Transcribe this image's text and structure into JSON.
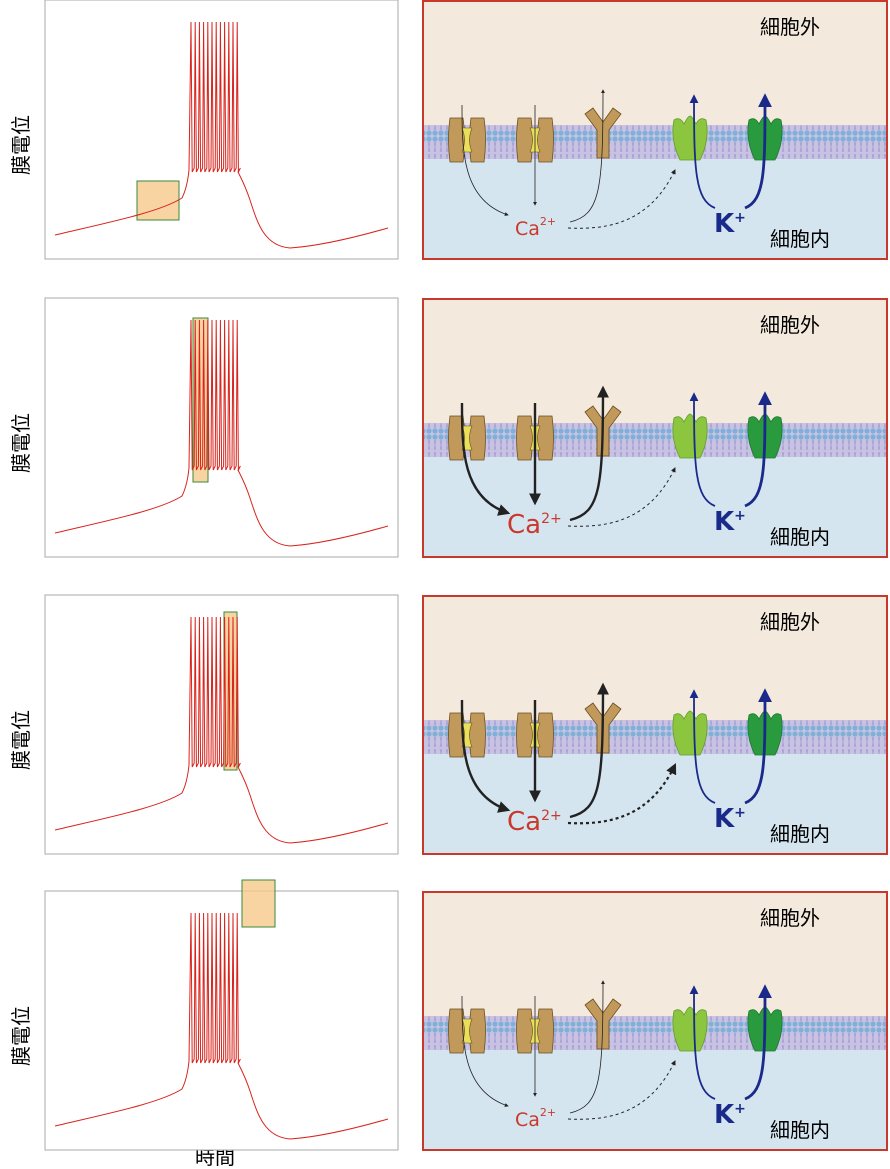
{
  "rows": [
    {
      "y_label": "膜電位",
      "outside": "細胞外",
      "inside": "細胞内",
      "calcium": "Ca",
      "calcium_charge": "2+",
      "potassium": "K",
      "potassium_charge": "+"
    },
    {
      "y_label": "膜電位",
      "outside": "細胞外",
      "inside": "細胞内",
      "calcium": "Ca",
      "calcium_charge": "2+",
      "potassium": "K",
      "potassium_charge": "+"
    },
    {
      "y_label": "膜電位",
      "outside": "細胞外",
      "inside": "細胞内",
      "calcium": "Ca",
      "calcium_charge": "2+",
      "potassium": "K",
      "potassium_charge": "+"
    },
    {
      "y_label": "膜電位",
      "outside": "細胞外",
      "inside": "細胞内",
      "calcium": "Ca",
      "calcium_charge": "2+",
      "potassium": "K",
      "potassium_charge": "+"
    }
  ],
  "x_label": "時間"
}
